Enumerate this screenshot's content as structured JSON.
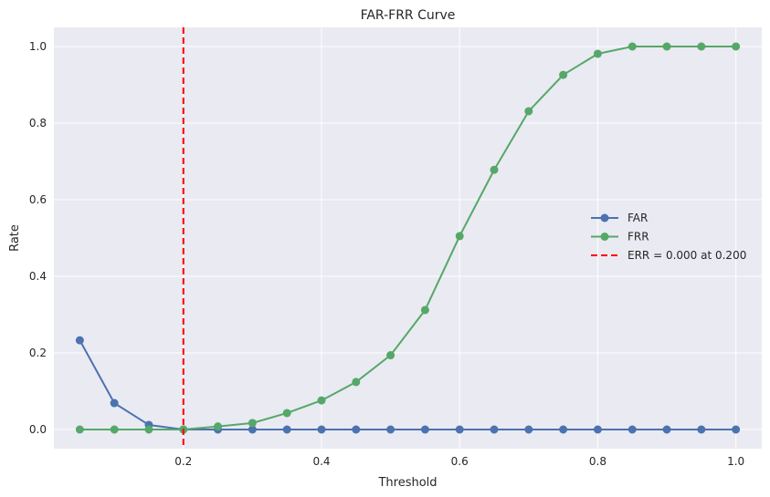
{
  "chart_data": {
    "type": "line",
    "title": "FAR-FRR Curve",
    "xlabel": "Threshold",
    "ylabel": "Rate",
    "xlim": [
      0.0125,
      1.0375
    ],
    "ylim": [
      -0.05,
      1.05
    ],
    "xticks": [
      0.2,
      0.4,
      0.6,
      0.8,
      1.0
    ],
    "xtick_labels": [
      "0.2",
      "0.4",
      "0.6",
      "0.8",
      "1.0"
    ],
    "yticks": [
      0.0,
      0.2,
      0.4,
      0.6,
      0.8,
      1.0
    ],
    "ytick_labels": [
      "0.0",
      "0.2",
      "0.4",
      "0.6",
      "0.8",
      "1.0"
    ],
    "grid": true,
    "legend_position": "center-right",
    "x": [
      0.05,
      0.1,
      0.15,
      0.2,
      0.25,
      0.3,
      0.35,
      0.4,
      0.45,
      0.5,
      0.55,
      0.6,
      0.65,
      0.7,
      0.75,
      0.8,
      0.85,
      0.9,
      0.95,
      1.0
    ],
    "series": [
      {
        "name": "FAR",
        "color": "#4c72b0",
        "values": [
          0.233,
          0.069,
          0.012,
          0.0,
          0.0,
          0.0,
          0.0,
          0.0,
          0.0,
          0.0,
          0.0,
          0.0,
          0.0,
          0.0,
          0.0,
          0.0,
          0.0,
          0.0,
          0.0,
          0.0
        ]
      },
      {
        "name": "FRR",
        "color": "#55a868",
        "values": [
          0.0,
          0.0,
          0.0,
          0.0,
          0.008,
          0.017,
          0.043,
          0.076,
          0.124,
          0.194,
          0.312,
          0.505,
          0.678,
          0.831,
          0.926,
          0.981,
          1.0,
          1.0,
          1.0,
          1.0
        ]
      }
    ],
    "vline": {
      "name": "ERR = 0.000 at 0.200",
      "x": 0.2,
      "color": "#ff0000",
      "style": "dashed"
    },
    "background_color": "#eaeaf2",
    "grid_color": "#ffffff"
  }
}
